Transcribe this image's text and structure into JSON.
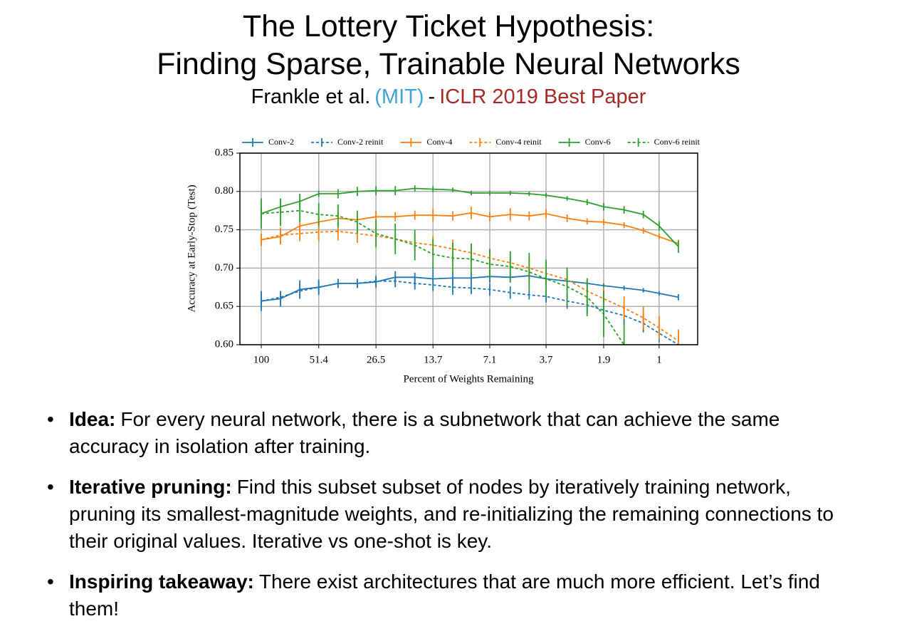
{
  "title": [
    "The Lottery Ticket Hypothesis:",
    "Finding Sparse, Trainable Neural Networks"
  ],
  "subtitle": {
    "authors": "Frankle et al.",
    "affiliation": "(MIT)",
    "separator": "-",
    "venue": "ICLR 2019 Best Paper"
  },
  "chart_data": {
    "type": "line",
    "x_label": "Percent of Weights Remaining",
    "y_label": "Accuracy at Early-Stop (Test)",
    "x": [
      100,
      80,
      64,
      51.4,
      41.1,
      32.9,
      26.5,
      21.2,
      16.9,
      13.7,
      10.9,
      8.8,
      7.1,
      5.6,
      4.5,
      3.7,
      2.9,
      2.3,
      1.9,
      1.5,
      1.2,
      1.0,
      0.8
    ],
    "xscale": "log",
    "xlim": [
      128,
      0.64
    ],
    "xticks": [
      100,
      51.4,
      26.5,
      13.7,
      7.1,
      3.7,
      1.9,
      1.0
    ],
    "ylim": [
      0.6,
      0.85
    ],
    "yticks": [
      {
        "value": 0.6,
        "label": "0.60"
      },
      {
        "value": 0.65,
        "label": "0.65"
      },
      {
        "value": 0.7,
        "label": "0.70"
      },
      {
        "value": 0.75,
        "label": "0.75"
      },
      {
        "value": 0.8,
        "label": "0.80"
      },
      {
        "value": 0.85,
        "label": "0.85"
      }
    ],
    "grid": true,
    "legend": "top",
    "series": [
      {
        "name": "Conv-2",
        "color": "#1f77b4",
        "linestyle": "solid",
        "values": [
          0.657,
          0.66,
          0.672,
          0.675,
          0.68,
          0.68,
          0.682,
          0.688,
          0.688,
          0.686,
          0.687,
          0.687,
          0.689,
          0.688,
          0.69,
          0.686,
          0.683,
          0.68,
          0.677,
          0.674,
          0.671,
          0.667,
          0.662
        ],
        "errors": [
          0.013,
          0.01,
          0.012,
          0.01,
          0.006,
          0.006,
          0.008,
          0.008,
          0.006,
          0.012,
          0.008,
          0.006,
          0.008,
          0.007,
          0.006,
          0.004,
          0.004,
          0.004,
          0.003,
          0.003,
          0.003,
          0.003,
          0.004
        ]
      },
      {
        "name": "Conv-2 reinit",
        "color": "#1f77b4",
        "linestyle": "dashed",
        "values": [
          0.657,
          0.662,
          0.67,
          0.675,
          0.68,
          0.68,
          0.683,
          0.683,
          0.68,
          0.678,
          0.675,
          0.674,
          0.672,
          0.668,
          0.665,
          0.663,
          0.657,
          0.652,
          0.645,
          0.638,
          0.628,
          0.615,
          0.6
        ],
        "errors": [
          0.01,
          0.008,
          0.01,
          0.008,
          0.006,
          0.006,
          0.006,
          0.008,
          0.008,
          0.008,
          0.01,
          0.008,
          0.008,
          0.008,
          0.006,
          0.008,
          0.01,
          0.012,
          0.012,
          0.012,
          0.012,
          0.012,
          0.012
        ]
      },
      {
        "name": "Conv-4",
        "color": "#ff7f0e",
        "linestyle": "solid",
        "values": [
          0.737,
          0.741,
          0.755,
          0.76,
          0.765,
          0.763,
          0.767,
          0.767,
          0.769,
          0.769,
          0.768,
          0.772,
          0.767,
          0.77,
          0.768,
          0.771,
          0.765,
          0.761,
          0.76,
          0.756,
          0.749,
          0.741,
          0.732
        ],
        "errors": [
          0.008,
          0.01,
          0.008,
          0.008,
          0.01,
          0.008,
          0.008,
          0.006,
          0.006,
          0.008,
          0.006,
          0.008,
          0.006,
          0.008,
          0.006,
          0.006,
          0.005,
          0.004,
          0.004,
          0.004,
          0.004,
          0.004,
          0.005
        ]
      },
      {
        "name": "Conv-4 reinit",
        "color": "#ff7f0e",
        "linestyle": "dashed",
        "values": [
          0.737,
          0.743,
          0.745,
          0.747,
          0.748,
          0.745,
          0.742,
          0.738,
          0.733,
          0.73,
          0.725,
          0.72,
          0.713,
          0.707,
          0.7,
          0.693,
          0.685,
          0.67,
          0.66,
          0.648,
          0.635,
          0.622,
          0.605
        ],
        "errors": [
          0.008,
          0.01,
          0.01,
          0.012,
          0.012,
          0.012,
          0.012,
          0.012,
          0.012,
          0.012,
          0.012,
          0.012,
          0.012,
          0.012,
          0.012,
          0.015,
          0.015,
          0.015,
          0.015,
          0.015,
          0.015,
          0.015,
          0.015
        ]
      },
      {
        "name": "Conv-6",
        "color": "#2ca02c",
        "linestyle": "solid",
        "values": [
          0.771,
          0.78,
          0.787,
          0.797,
          0.797,
          0.8,
          0.801,
          0.801,
          0.804,
          0.803,
          0.802,
          0.798,
          0.798,
          0.798,
          0.797,
          0.795,
          0.791,
          0.786,
          0.78,
          0.776,
          0.77,
          0.755,
          0.728
        ],
        "errors": [
          0.008,
          0.01,
          0.01,
          0.004,
          0.006,
          0.006,
          0.006,
          0.006,
          0.004,
          0.004,
          0.003,
          0.003,
          0.003,
          0.003,
          0.003,
          0.003,
          0.003,
          0.004,
          0.005,
          0.005,
          0.005,
          0.006,
          0.008
        ]
      },
      {
        "name": "Conv-6 reinit",
        "color": "#2ca02c",
        "linestyle": "dashed",
        "values": [
          0.771,
          0.773,
          0.775,
          0.77,
          0.768,
          0.76,
          0.745,
          0.738,
          0.73,
          0.718,
          0.713,
          0.712,
          0.705,
          0.702,
          0.695,
          0.686,
          0.676,
          0.662,
          0.64,
          0.6,
          0.56,
          null,
          null
        ],
        "errors": [
          0.02,
          0.018,
          0.015,
          0.015,
          0.015,
          0.015,
          0.018,
          0.02,
          0.02,
          0.02,
          0.02,
          0.02,
          0.02,
          0.02,
          0.025,
          0.025,
          0.025,
          0.025,
          0.03,
          0.03,
          0.03,
          null,
          null
        ]
      }
    ]
  },
  "bullets": [
    {
      "label": "Idea:",
      "text": "For every neural network, there is a subnetwork that can achieve the same accuracy in isolation after training."
    },
    {
      "label": "Iterative pruning:",
      "text": "Find this subset subset of nodes by iteratively training network, pruning its smallest-magnitude weights, and re-initializing the remaining connections to their original values. Iterative vs one-shot is key."
    },
    {
      "label": "Inspiring takeaway:",
      "text": "There exist architectures that are much more efficient. Let’s find them!"
    }
  ]
}
